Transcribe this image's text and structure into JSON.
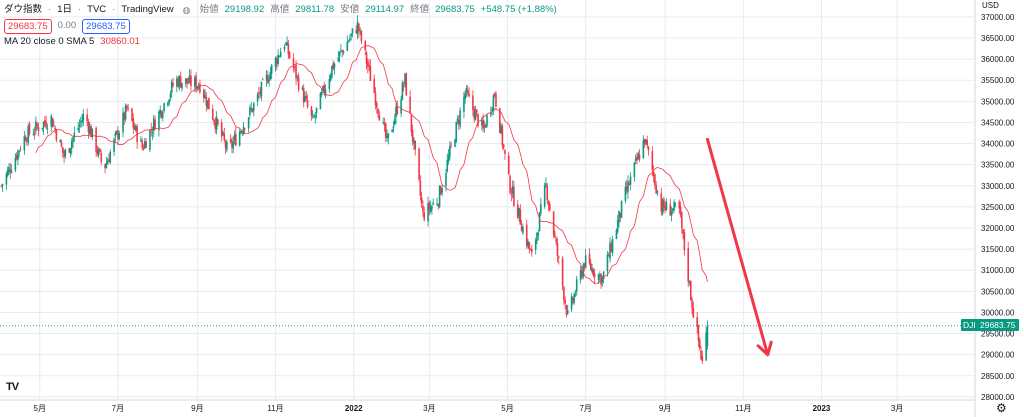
{
  "header": {
    "symbol": "ダウ指数",
    "interval": "1日",
    "exchange": "TVC",
    "source": "TradingView",
    "open_label": "始値",
    "open": "29198.92",
    "high_label": "高値",
    "high": "29811.78",
    "low_label": "安値",
    "low": "29114.97",
    "close_label": "終値",
    "close": "29683.75",
    "change": "+548.75 (+1.88%)",
    "bid": "29683.75",
    "spread": "0.00",
    "ask": "29683.75"
  },
  "indicator": {
    "label": "MA 20 close 0 SMA 5",
    "value": "30860.01"
  },
  "price_scale": {
    "currency": "USD",
    "current_symbol": "DJI",
    "current_price": "29683.75"
  },
  "colors": {
    "up": "#089981",
    "down": "#f23645",
    "ma": "#f23645",
    "arrow": "#f23645",
    "grid": "#e8ebf0",
    "current_line": "#089981"
  },
  "chart_data": {
    "type": "candlestick",
    "y_axis_ticks": [
      "37000.00",
      "36500.00",
      "36000.00",
      "35500.00",
      "35000.00",
      "34500.00",
      "34000.00",
      "33500.00",
      "33000.00",
      "32500.00",
      "32000.00",
      "31500.00",
      "31000.00",
      "30500.00",
      "30000.00",
      "29500.00",
      "29000.00",
      "28500.00",
      "28000.00"
    ],
    "ylim": [
      27950,
      37400
    ],
    "x_axis_ticks": [
      {
        "label": "5月",
        "date": "2021-05-01"
      },
      {
        "label": "7月",
        "date": "2021-07-01"
      },
      {
        "label": "9月",
        "date": "2021-09-01"
      },
      {
        "label": "11月",
        "date": "2021-11-01"
      },
      {
        "label": "2022",
        "date": "2022-01-01"
      },
      {
        "label": "3月",
        "date": "2022-03-01"
      },
      {
        "label": "5月",
        "date": "2022-05-01"
      },
      {
        "label": "7月",
        "date": "2022-07-01"
      },
      {
        "label": "9月",
        "date": "2022-09-01"
      },
      {
        "label": "11月",
        "date": "2022-11-01"
      },
      {
        "label": "2023",
        "date": "2023-01-01"
      },
      {
        "label": "3月",
        "date": "2023-03-01"
      }
    ],
    "x_range": [
      "2021-03-31",
      "2023-04-30"
    ],
    "trend_points": [
      [
        "2021-04-01",
        33000
      ],
      [
        "2021-04-20",
        34200
      ],
      [
        "2021-05-10",
        34600
      ],
      [
        "2021-05-20",
        33700
      ],
      [
        "2021-06-05",
        34700
      ],
      [
        "2021-06-20",
        33400
      ],
      [
        "2021-07-08",
        34800
      ],
      [
        "2021-07-20",
        33900
      ],
      [
        "2021-08-15",
        35500
      ],
      [
        "2021-09-03",
        35400
      ],
      [
        "2021-09-25",
        33800
      ],
      [
        "2021-10-15",
        34900
      ],
      [
        "2021-11-08",
        36400
      ],
      [
        "2021-11-30",
        34500
      ],
      [
        "2021-12-15",
        35800
      ],
      [
        "2022-01-04",
        36800
      ],
      [
        "2022-01-27",
        34000
      ],
      [
        "2022-02-10",
        35500
      ],
      [
        "2022-02-24",
        32300
      ],
      [
        "2022-03-08",
        32700
      ],
      [
        "2022-03-29",
        35200
      ],
      [
        "2022-04-12",
        34300
      ],
      [
        "2022-04-21",
        35200
      ],
      [
        "2022-05-02",
        33100
      ],
      [
        "2022-05-20",
        31300
      ],
      [
        "2022-05-31",
        33000
      ],
      [
        "2022-06-17",
        29900
      ],
      [
        "2022-06-30",
        31200
      ],
      [
        "2022-07-14",
        30800
      ],
      [
        "2022-08-01",
        32800
      ],
      [
        "2022-08-16",
        34100
      ],
      [
        "2022-08-29",
        32500
      ],
      [
        "2022-09-12",
        32400
      ],
      [
        "2022-09-22",
        30200
      ],
      [
        "2022-09-30",
        28800
      ],
      [
        "2022-10-04",
        29683.75
      ]
    ],
    "arrow": {
      "from": [
        "2022-10-04",
        34100
      ],
      "to": [
        "2022-11-20",
        29000
      ]
    }
  }
}
